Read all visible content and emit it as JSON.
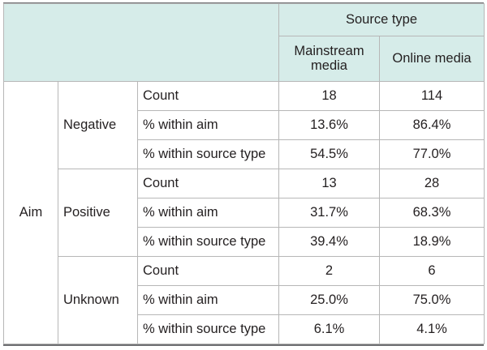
{
  "header": {
    "source_type": "Source type",
    "columns": [
      "Mainstream media",
      "Online media"
    ]
  },
  "row_group_label": "Aim",
  "groups": [
    {
      "label": "Negative",
      "rows": [
        {
          "stat": "Count",
          "mainstream": "18",
          "online": "114"
        },
        {
          "stat": "% within aim",
          "mainstream": "13.6%",
          "online": "86.4%"
        },
        {
          "stat": "% within source type",
          "mainstream": "54.5%",
          "online": "77.0%"
        }
      ]
    },
    {
      "label": "Positive",
      "rows": [
        {
          "stat": "Count",
          "mainstream": "13",
          "online": "28"
        },
        {
          "stat": "% within aim",
          "mainstream": "31.7%",
          "online": "68.3%"
        },
        {
          "stat": "% within source type",
          "mainstream": "39.4%",
          "online": "18.9%"
        }
      ]
    },
    {
      "label": "Unknown",
      "rows": [
        {
          "stat": "Count",
          "mainstream": "2",
          "online": "6"
        },
        {
          "stat": "% within aim",
          "mainstream": "25.0%",
          "online": "75.0%"
        },
        {
          "stat": "% within source type",
          "mainstream": "6.1%",
          "online": "4.1%"
        }
      ]
    }
  ],
  "colors": {
    "header_bg": "#d6ece9",
    "border": "#b7b7b7",
    "rule": "#6d6e71"
  }
}
